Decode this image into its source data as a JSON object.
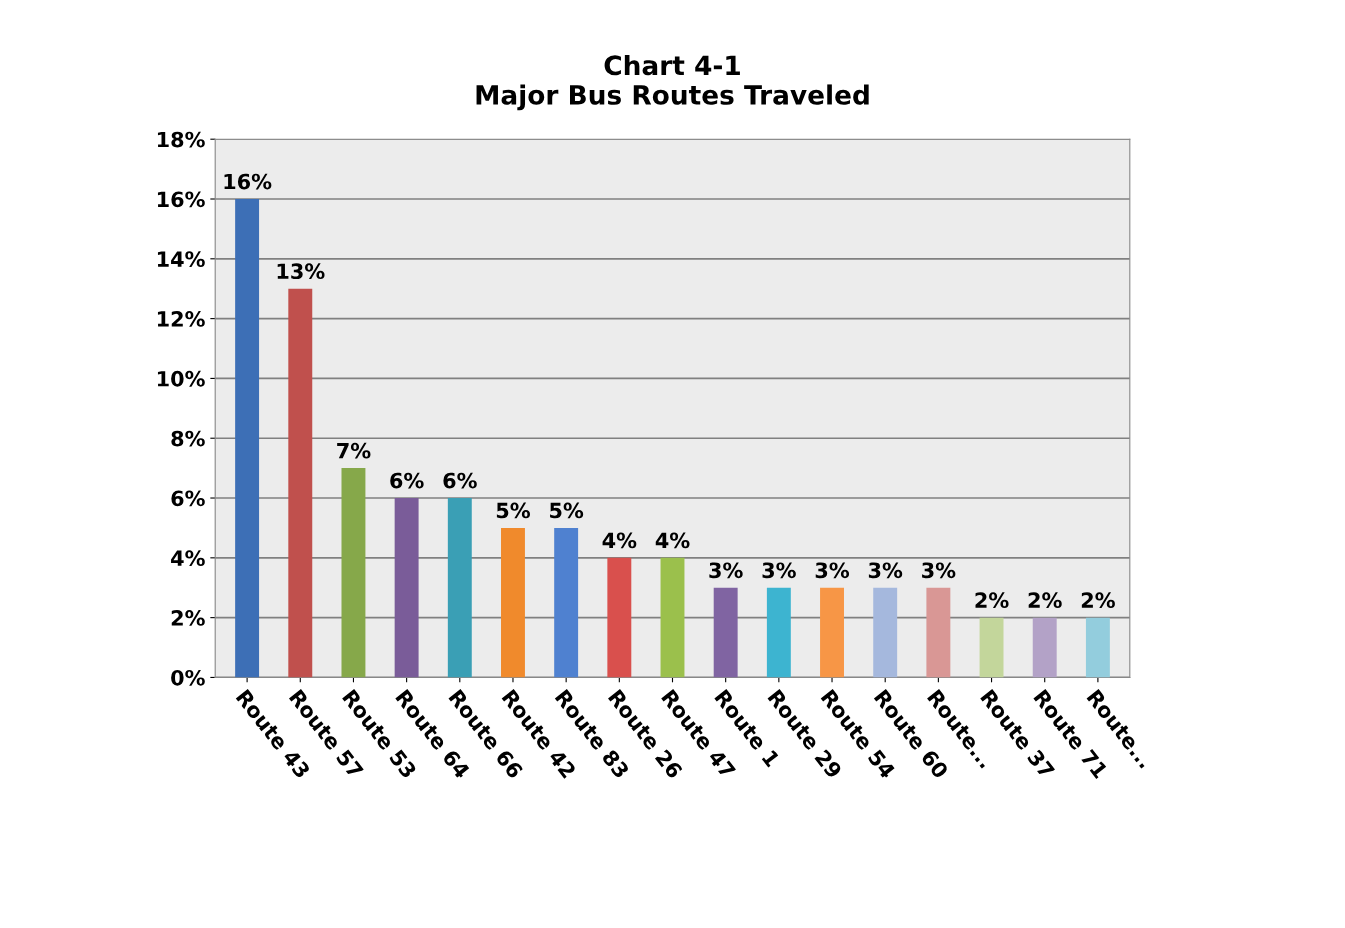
{
  "chart_data": {
    "type": "bar",
    "title": "Chart 4-1\nMajor Bus Routes Traveled",
    "categories": [
      "Route 43",
      "Route 57",
      "Route 53",
      "Route 64",
      "Route 66",
      "Route 42",
      "Route 83",
      "Route 26",
      "Route 47",
      "Route 1",
      "Route 29",
      "Route 54",
      "Route 60",
      "Route...",
      "Route 37",
      "Route 71",
      "Route..."
    ],
    "values": [
      16,
      13,
      7,
      6,
      6,
      5,
      5,
      4,
      4,
      3,
      3,
      3,
      3,
      3,
      2,
      2,
      2
    ],
    "value_labels": [
      "16%",
      "13%",
      "7%",
      "6%",
      "6%",
      "5%",
      "5%",
      "4%",
      "4%",
      "3%",
      "3%",
      "3%",
      "3%",
      "3%",
      "2%",
      "2%",
      "2%"
    ],
    "colors": [
      "#3d6fb6",
      "#c0504d",
      "#86a84a",
      "#7a5c99",
      "#3a9fb5",
      "#f08a2c",
      "#4f81d0",
      "#d9504d",
      "#9bc04c",
      "#8064a2",
      "#3db4d0",
      "#f79646",
      "#a5b8dd",
      "#d99795",
      "#c3d69b",
      "#b3a2c7",
      "#93cddd"
    ],
    "ylim": [
      0,
      18
    ],
    "yticks": [
      {
        "value": 0,
        "label": "0%"
      },
      {
        "value": 2,
        "label": "2%"
      },
      {
        "value": 4,
        "label": "4%"
      },
      {
        "value": 6,
        "label": "6%"
      },
      {
        "value": 8,
        "label": "8%"
      },
      {
        "value": 10,
        "label": "10%"
      },
      {
        "value": 12,
        "label": "12%"
      },
      {
        "value": 14,
        "label": "14%"
      },
      {
        "value": 16,
        "label": "16%"
      },
      {
        "value": 18,
        "label": "18%"
      }
    ],
    "grid": "y"
  }
}
